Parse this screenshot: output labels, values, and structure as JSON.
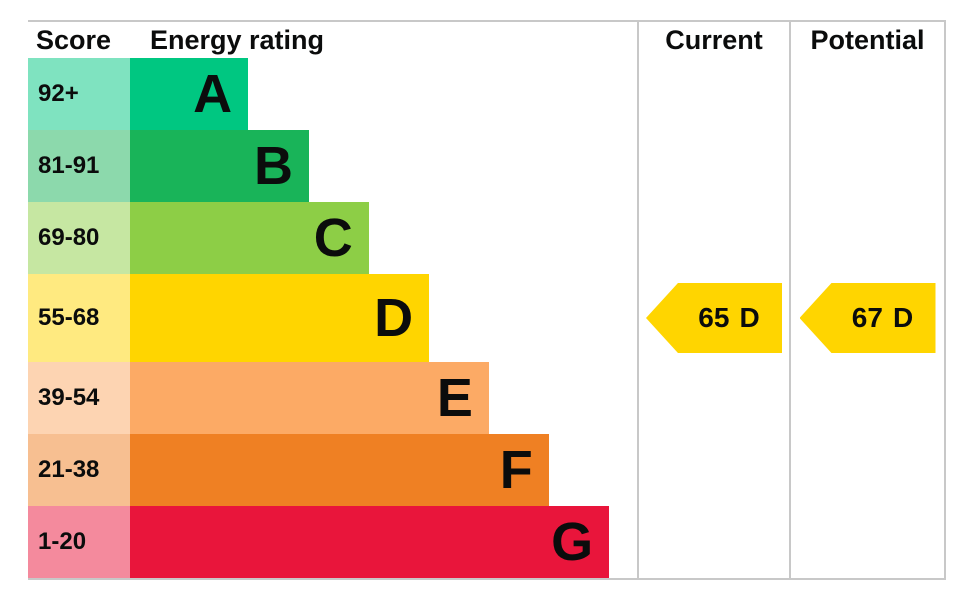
{
  "header": {
    "score": "Score",
    "energy_rating": "Energy rating",
    "current": "Current",
    "potential": "Potential"
  },
  "bands": [
    {
      "score": "92+",
      "letter": "A",
      "bar_color": "#00c781",
      "score_bg": "#7fe3c0",
      "width_pct": 23.3
    },
    {
      "score": "81-91",
      "letter": "B",
      "bar_color": "#19b459",
      "score_bg": "#8cd9ac",
      "width_pct": 35.3
    },
    {
      "score": "69-80",
      "letter": "C",
      "bar_color": "#8dce46",
      "score_bg": "#c6e7a2",
      "width_pct": 47.1
    },
    {
      "score": "55-68",
      "letter": "D",
      "bar_color": "#ffd500",
      "score_bg": "#ffea80",
      "width_pct": 59.0
    },
    {
      "score": "39-54",
      "letter": "E",
      "bar_color": "#fcaa65",
      "score_bg": "#fdd4b2",
      "width_pct": 70.8
    },
    {
      "score": "21-38",
      "letter": "F",
      "bar_color": "#ef8023",
      "score_bg": "#f7bf91",
      "width_pct": 82.6
    },
    {
      "score": "1-20",
      "letter": "G",
      "bar_color": "#e9153b",
      "score_bg": "#f48a9d",
      "width_pct": 94.5
    }
  ],
  "current": {
    "value": "65",
    "letter": "D",
    "arrow_color": "#ffd500",
    "band_index": 3
  },
  "potential": {
    "value": "67",
    "letter": "D",
    "arrow_color": "#ffd500",
    "band_index": 3
  },
  "chart_data": {
    "type": "bar",
    "title": "EPC Energy rating chart",
    "categories": [
      "A",
      "B",
      "C",
      "D",
      "E",
      "F",
      "G"
    ],
    "score_ranges": [
      "92+",
      "81-91",
      "69-80",
      "55-68",
      "39-54",
      "21-38",
      "1-20"
    ],
    "values": [
      23.3,
      35.3,
      47.1,
      59.0,
      70.8,
      82.6,
      94.5
    ],
    "colors": [
      "#00c781",
      "#19b459",
      "#8dce46",
      "#ffd500",
      "#fcaa65",
      "#ef8023",
      "#e9153b"
    ],
    "column_headers": [
      "Score",
      "Energy rating",
      "Current",
      "Potential"
    ],
    "current": {
      "score": 65,
      "rating": "D"
    },
    "potential": {
      "score": 67,
      "rating": "D"
    },
    "legend_position": "none",
    "grid": false
  }
}
